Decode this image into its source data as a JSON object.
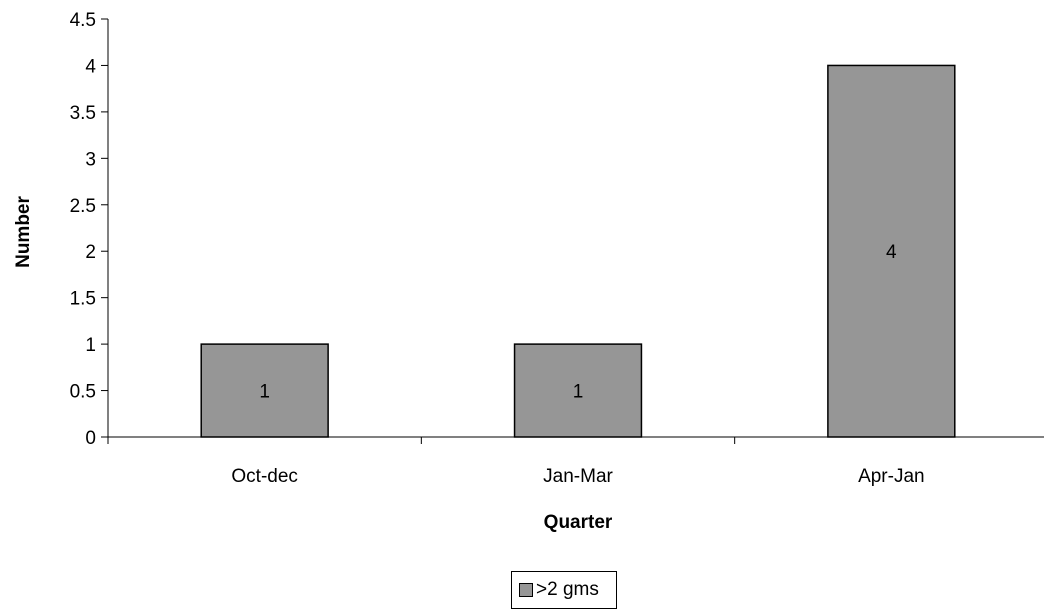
{
  "chart_data": {
    "type": "bar",
    "categories": [
      "Oct-dec",
      "Jan-Mar",
      "Apr-Jan"
    ],
    "series": [
      {
        "name": ">2 gms",
        "values": [
          1,
          1,
          4
        ],
        "color": "#969696"
      }
    ],
    "data_labels": [
      "1",
      "1",
      "4"
    ],
    "xlabel": "Quarter",
    "ylabel": "Number",
    "ylim": [
      0,
      4.5
    ],
    "y_ticks": [
      0,
      0.5,
      1,
      1.5,
      2,
      2.5,
      3,
      3.5,
      4,
      4.5
    ],
    "y_tick_labels": [
      "0",
      "0.5",
      "1",
      "1.5",
      "2",
      "2.5",
      "3",
      "3.5",
      "4",
      "4.5"
    ],
    "grid": false,
    "legend_position": "bottom"
  }
}
